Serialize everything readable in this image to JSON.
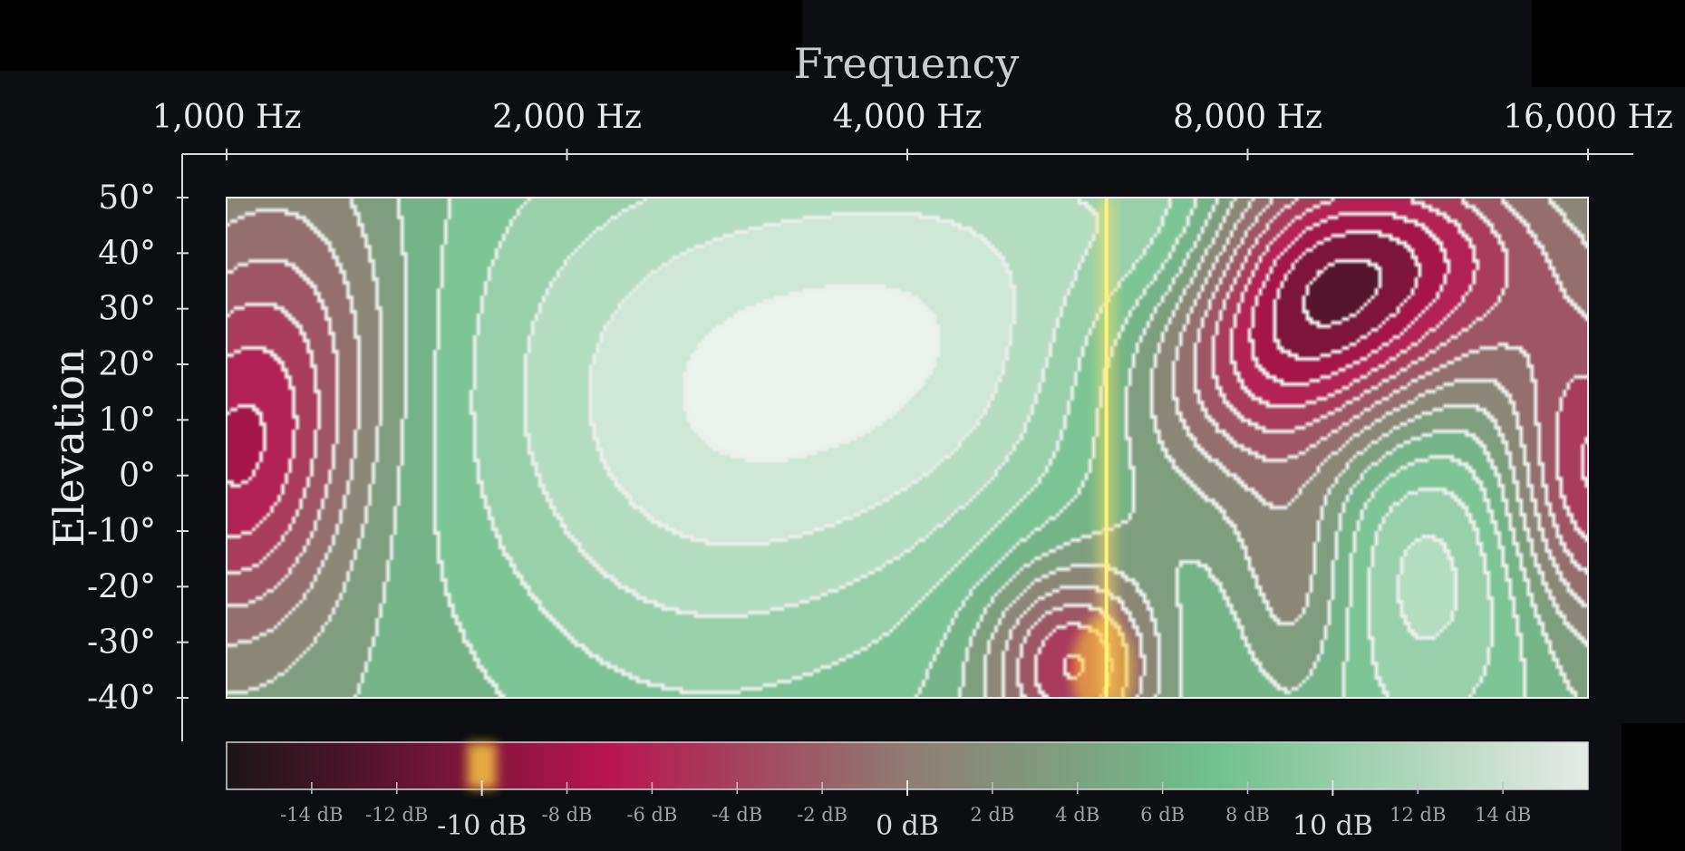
{
  "chart_data": {
    "type": "heatmap",
    "title": "",
    "xlabel": "Frequency",
    "ylabel": "Elevation",
    "x_scale": "log2",
    "x_range_hz": [
      1000,
      16000
    ],
    "y_range_deg": [
      -40,
      50
    ],
    "x_ticks": [
      {
        "value": 1000,
        "label": "1,000 Hz"
      },
      {
        "value": 2000,
        "label": "2,000 Hz"
      },
      {
        "value": 4000,
        "label": "4,000 Hz"
      },
      {
        "value": 8000,
        "label": "8,000 Hz"
      },
      {
        "value": 16000,
        "label": "16,000 Hz"
      }
    ],
    "y_ticks": [
      {
        "value": 50,
        "label": "50°"
      },
      {
        "value": 40,
        "label": "40°"
      },
      {
        "value": 30,
        "label": "30°"
      },
      {
        "value": 20,
        "label": "20°"
      },
      {
        "value": 10,
        "label": "10°"
      },
      {
        "value": 0,
        "label": "0°"
      },
      {
        "value": -10,
        "label": "-10°"
      },
      {
        "value": -20,
        "label": "-20°"
      },
      {
        "value": -30,
        "label": "-30°"
      },
      {
        "value": -40,
        "label": "-40°"
      }
    ],
    "marker_frequency_hz": 6000,
    "marker_db": -10,
    "colorbar": {
      "range_db": [
        -16,
        16
      ],
      "colors": {
        "low": "#1a1517",
        "mid_low": "#b8154f",
        "mid": "#8f7c74",
        "mid_high": "#6fbf8c",
        "high": "#e6eae6"
      },
      "major_ticks": [
        {
          "value": -10,
          "label": "-10 dB"
        },
        {
          "value": 0,
          "label": "0 dB"
        },
        {
          "value": 10,
          "label": "10 dB"
        }
      ],
      "minor_ticks": [
        {
          "value": -14,
          "label": "-14 dB"
        },
        {
          "value": -12,
          "label": "-12 dB"
        },
        {
          "value": -8,
          "label": "-8 dB"
        },
        {
          "value": -6,
          "label": "-6 dB"
        },
        {
          "value": -4,
          "label": "-4 dB"
        },
        {
          "value": -2,
          "label": "-2 dB"
        },
        {
          "value": 2,
          "label": "2 dB"
        },
        {
          "value": 4,
          "label": "4 dB"
        },
        {
          "value": 6,
          "label": "6 dB"
        },
        {
          "value": 8,
          "label": "8 dB"
        },
        {
          "value": 12,
          "label": "12 dB"
        },
        {
          "value": 14,
          "label": "14 dB"
        }
      ]
    },
    "features": [
      {
        "f_hz": 1000,
        "elev": 0,
        "db": -7,
        "spread_oct": 0.22,
        "spread_deg": 22
      },
      {
        "f_hz": 1150,
        "elev": 25,
        "db": -3,
        "spread_oct": 0.25,
        "spread_deg": 25
      },
      {
        "f_hz": 1600,
        "elev": -20,
        "db": 3,
        "spread_oct": 0.35,
        "spread_deg": 25
      },
      {
        "f_hz": 2500,
        "elev": 10,
        "db": 13,
        "spread_oct": 0.6,
        "spread_deg": 40
      },
      {
        "f_hz": 3700,
        "elev": 25,
        "db": 8,
        "spread_oct": 0.5,
        "spread_deg": 30
      },
      {
        "f_hz": 5100,
        "elev": 30,
        "db": 9,
        "spread_oct": 0.4,
        "spread_deg": 30
      },
      {
        "f_hz": 5600,
        "elev": -34,
        "db": -9,
        "spread_oct": 0.18,
        "spread_deg": 12
      },
      {
        "f_hz": 6200,
        "elev": -12,
        "db": 2,
        "spread_oct": 0.3,
        "spread_deg": 18
      },
      {
        "f_hz": 6900,
        "elev": 42,
        "db": 10,
        "spread_oct": 0.2,
        "spread_deg": 16
      },
      {
        "f_hz": 7200,
        "elev": -32,
        "db": 7,
        "spread_oct": 0.25,
        "spread_deg": 15
      },
      {
        "f_hz": 8500,
        "elev": 22,
        "db": -10,
        "spread_oct": 0.35,
        "spread_deg": 16
      },
      {
        "f_hz": 10500,
        "elev": 40,
        "db": -9,
        "spread_oct": 0.35,
        "spread_deg": 14
      },
      {
        "f_hz": 8800,
        "elev": -20,
        "db": -3,
        "spread_oct": 0.14,
        "spread_deg": 16
      },
      {
        "f_hz": 11500,
        "elev": -15,
        "db": 12,
        "spread_oct": 0.3,
        "spread_deg": 26
      },
      {
        "f_hz": 16000,
        "elev": 0,
        "db": -9,
        "spread_oct": 0.18,
        "spread_deg": 20
      }
    ]
  }
}
